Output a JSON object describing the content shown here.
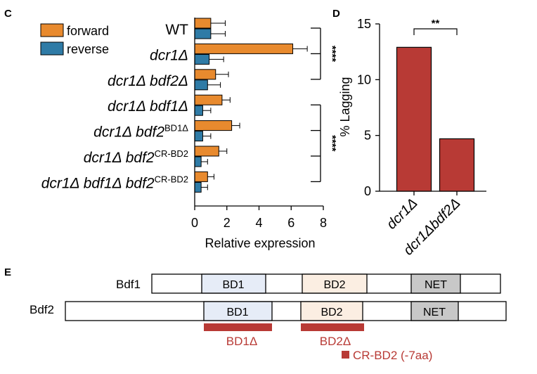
{
  "panels": {
    "c": "C",
    "d": "D",
    "e": "E"
  },
  "colors": {
    "forward": "#e88a2e",
    "reverse": "#2f7ba6",
    "lagging": "#b83a35",
    "bd1_box": "#e6ecf7",
    "bd2_box": "#fbeee2",
    "net_box": "#c8c8c8",
    "deletion": "#b83a35"
  },
  "chart_data": [
    {
      "panel": "C",
      "type": "bar",
      "orientation": "horizontal",
      "categories": [
        {
          "prefix": "",
          "base": "WT",
          "sup": ""
        },
        {
          "prefix": "",
          "base": "dcr1Δ",
          "sup": ""
        },
        {
          "prefix": "",
          "base": "dcr1Δ bdf2Δ",
          "sup": ""
        },
        {
          "prefix": "",
          "base": "dcr1Δ bdf1Δ",
          "sup": ""
        },
        {
          "prefix": "",
          "base": "dcr1Δ bdf2",
          "sup": "BD1Δ"
        },
        {
          "prefix": "",
          "base": "dcr1Δ bdf2",
          "sup": "CR-BD2"
        },
        {
          "prefix": "",
          "base": "dcr1Δ bdf1Δ bdf2",
          "sup": "CR-BD2"
        }
      ],
      "series": [
        {
          "name": "forward",
          "values": [
            1.0,
            6.1,
            1.3,
            1.7,
            2.3,
            1.5,
            0.8
          ],
          "errors": [
            0.9,
            0.9,
            0.8,
            0.5,
            0.5,
            0.5,
            0.4
          ]
        },
        {
          "name": "reverse",
          "values": [
            1.0,
            0.9,
            0.8,
            0.5,
            0.5,
            0.4,
            0.4
          ],
          "errors": [
            0.9,
            0.9,
            0.8,
            0.5,
            0.5,
            0.4,
            0.4
          ]
        }
      ],
      "xlabel": "Relative expression",
      "ticks": [
        "0",
        "2",
        "4",
        "6",
        "8"
      ],
      "xlim": [
        0,
        8
      ],
      "significance": [
        {
          "rows": [
            0,
            2
          ],
          "label": "****"
        },
        {
          "rows": [
            3,
            6
          ],
          "label": "****"
        }
      ],
      "legend_position": "top-left"
    },
    {
      "panel": "D",
      "type": "bar",
      "categories": [
        "dcr1Δ",
        "dcr1Δbdf2Δ"
      ],
      "values": [
        12.9,
        4.7
      ],
      "ylabel": "% Lagging",
      "ticks": [
        "0",
        "5",
        "10",
        "15"
      ],
      "ylim": [
        0,
        15
      ],
      "significance": {
        "label": "**",
        "between": [
          0,
          1
        ]
      }
    }
  ],
  "domains": {
    "proteins": [
      {
        "name": "Bdf1",
        "domains": [
          "BD1",
          "BD2",
          "NET"
        ]
      },
      {
        "name": "Bdf2",
        "domains": [
          "BD1",
          "BD2",
          "NET"
        ]
      }
    ],
    "deletions": [
      "BD1Δ",
      "BD2Δ",
      "CR-BD2 (-7aa)"
    ]
  }
}
